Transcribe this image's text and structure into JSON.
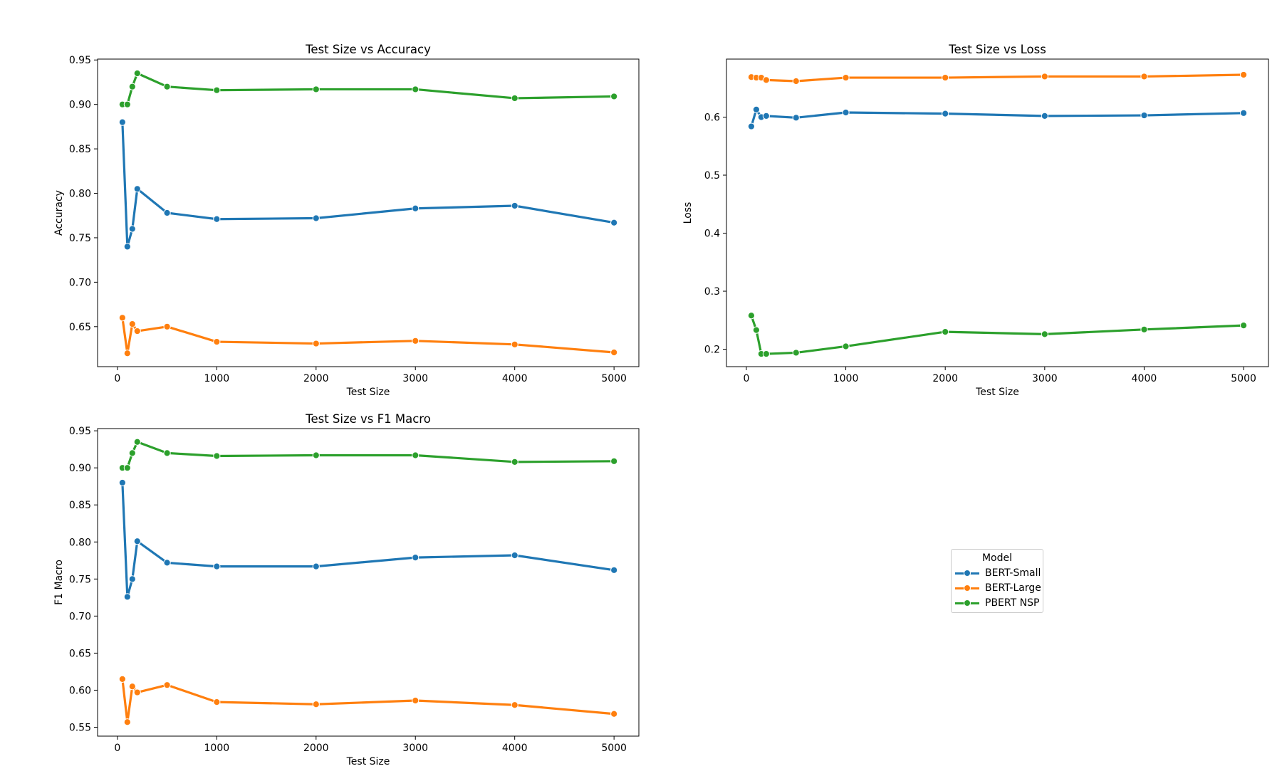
{
  "legend": {
    "title": "Model",
    "items": [
      {
        "label": "BERT-Small",
        "color": "#1f77b4"
      },
      {
        "label": "BERT-Large",
        "color": "#ff7f0e"
      },
      {
        "label": "PBERT NSP",
        "color": "#2ca02c"
      }
    ]
  },
  "chart_data": [
    {
      "type": "line",
      "title": "Test Size vs Accuracy",
      "xlabel": "Test Size",
      "ylabel": "Accuracy",
      "x": [
        50,
        100,
        150,
        200,
        500,
        1000,
        2000,
        3000,
        4000,
        5000
      ],
      "xlim": [
        -200,
        5250
      ],
      "ylim": [
        0.605,
        0.951
      ],
      "xticks": [
        0,
        1000,
        2000,
        3000,
        4000,
        5000
      ],
      "yticks": [
        0.65,
        0.7,
        0.75,
        0.8,
        0.85,
        0.9,
        0.95
      ],
      "ytick_labels": [
        "0.65",
        "0.70",
        "0.75",
        "0.80",
        "0.85",
        "0.90",
        "0.95"
      ],
      "series": [
        {
          "name": "BERT-Small",
          "color": "#1f77b4",
          "values": [
            0.88,
            0.74,
            0.76,
            0.805,
            0.778,
            0.771,
            0.772,
            0.783,
            0.786,
            0.767
          ]
        },
        {
          "name": "BERT-Large",
          "color": "#ff7f0e",
          "values": [
            0.66,
            0.62,
            0.653,
            0.645,
            0.65,
            0.633,
            0.631,
            0.634,
            0.63,
            0.621
          ]
        },
        {
          "name": "PBERT NSP",
          "color": "#2ca02c",
          "values": [
            0.9,
            0.9,
            0.92,
            0.935,
            0.92,
            0.916,
            0.917,
            0.917,
            0.907,
            0.909
          ]
        }
      ]
    },
    {
      "type": "line",
      "title": "Test Size vs Loss",
      "xlabel": "Test Size",
      "ylabel": "Loss",
      "x": [
        50,
        100,
        150,
        200,
        500,
        1000,
        2000,
        3000,
        4000,
        5000
      ],
      "xlim": [
        -200,
        5250
      ],
      "ylim": [
        0.17,
        0.7
      ],
      "xticks": [
        0,
        1000,
        2000,
        3000,
        4000,
        5000
      ],
      "yticks": [
        0.2,
        0.3,
        0.4,
        0.5,
        0.6
      ],
      "ytick_labels": [
        "0.2",
        "0.3",
        "0.4",
        "0.5",
        "0.6"
      ],
      "series": [
        {
          "name": "BERT-Small",
          "color": "#1f77b4",
          "values": [
            0.584,
            0.613,
            0.6,
            0.602,
            0.599,
            0.608,
            0.606,
            0.602,
            0.603,
            0.607
          ]
        },
        {
          "name": "BERT-Large",
          "color": "#ff7f0e",
          "values": [
            0.669,
            0.668,
            0.668,
            0.664,
            0.662,
            0.668,
            0.668,
            0.67,
            0.67,
            0.673
          ]
        },
        {
          "name": "PBERT NSP",
          "color": "#2ca02c",
          "values": [
            0.258,
            0.233,
            0.192,
            0.192,
            0.194,
            0.205,
            0.23,
            0.226,
            0.234,
            0.241
          ]
        }
      ]
    },
    {
      "type": "line",
      "title": "Test Size vs F1 Macro",
      "xlabel": "Test Size",
      "ylabel": "F1 Macro",
      "x": [
        50,
        100,
        150,
        200,
        500,
        1000,
        2000,
        3000,
        4000,
        5000
      ],
      "xlim": [
        -200,
        5250
      ],
      "ylim": [
        0.538,
        0.953
      ],
      "xticks": [
        0,
        1000,
        2000,
        3000,
        4000,
        5000
      ],
      "yticks": [
        0.55,
        0.6,
        0.65,
        0.7,
        0.75,
        0.8,
        0.85,
        0.9,
        0.95
      ],
      "ytick_labels": [
        "0.55",
        "0.60",
        "0.65",
        "0.70",
        "0.75",
        "0.80",
        "0.85",
        "0.90",
        "0.95"
      ],
      "series": [
        {
          "name": "BERT-Small",
          "color": "#1f77b4",
          "values": [
            0.88,
            0.726,
            0.75,
            0.801,
            0.772,
            0.767,
            0.767,
            0.779,
            0.782,
            0.762
          ]
        },
        {
          "name": "BERT-Large",
          "color": "#ff7f0e",
          "values": [
            0.615,
            0.557,
            0.605,
            0.597,
            0.607,
            0.584,
            0.581,
            0.586,
            0.58,
            0.568
          ]
        },
        {
          "name": "PBERT NSP",
          "color": "#2ca02c",
          "values": [
            0.9,
            0.9,
            0.92,
            0.935,
            0.92,
            0.916,
            0.917,
            0.917,
            0.908,
            0.909
          ]
        }
      ]
    }
  ]
}
